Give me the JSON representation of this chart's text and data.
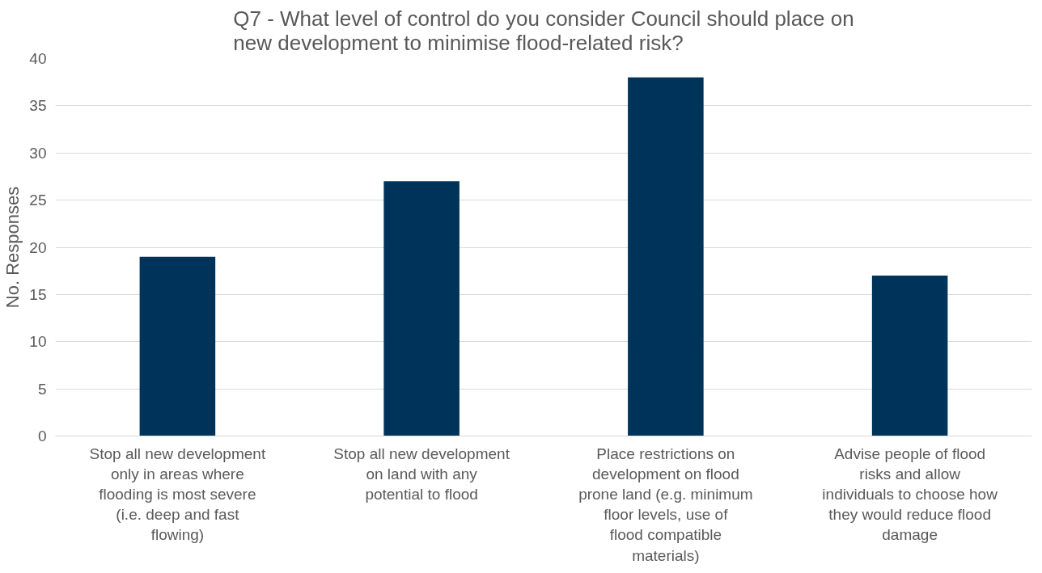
{
  "chart_data": {
    "type": "bar",
    "title": "Q7 - What level of control do you consider Council should place on new development to minimise flood-related risk?",
    "ylabel": "No. Responses",
    "categories": [
      "Stop all new development only in areas where flooding is most severe (i.e. deep and fast flowing)",
      "Stop all new development on land with any potential to flood",
      "Place restrictions on development on flood prone land (e.g. minimum floor levels, use of flood compatible materials)",
      "Advise people of flood risks and allow individuals to choose how they would reduce flood damage"
    ],
    "values": [
      19,
      27,
      38,
      17
    ],
    "color": "#003359",
    "ylim": [
      0,
      40
    ],
    "yticks": [
      0,
      5,
      10,
      15,
      20,
      25,
      30,
      35,
      40
    ],
    "grid": "y"
  }
}
